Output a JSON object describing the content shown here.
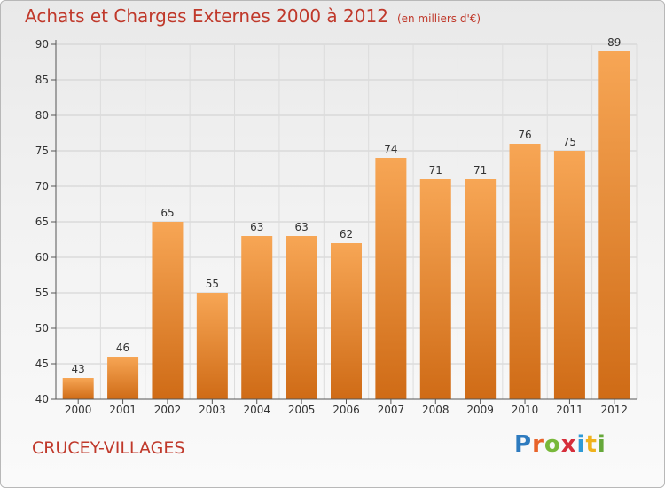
{
  "page": {
    "title": "Achats et Charges Externes 2000 à 2012",
    "unit_note": "(en milliers d'€)",
    "commune": "CRUCEY-VILLAGES"
  },
  "logo": {
    "letters": [
      "P",
      "r",
      "o",
      "x",
      "i",
      "t",
      "i"
    ],
    "colors": [
      "#2e7bbf",
      "#e8632a",
      "#78b83a",
      "#d62e3b",
      "#2e9ad6",
      "#f0b21c",
      "#66a83a"
    ],
    "text": "Proxiti"
  },
  "colors": {
    "bar_top": "#f7a655",
    "bar_bottom": "#cf6b16",
    "title": "#c0392b"
  },
  "chart_data": {
    "type": "bar",
    "categories": [
      "2000",
      "2001",
      "2002",
      "2003",
      "2004",
      "2005",
      "2006",
      "2007",
      "2008",
      "2009",
      "2010",
      "2011",
      "2012"
    ],
    "values": [
      43,
      46,
      65,
      55,
      63,
      63,
      62,
      74,
      71,
      71,
      76,
      75,
      89
    ],
    "title": "Achats et Charges Externes 2000 à 2012",
    "ylim": [
      40,
      90
    ],
    "yticks": [
      40,
      45,
      50,
      55,
      60,
      65,
      70,
      75,
      80,
      85,
      90
    ],
    "grid": true,
    "data_labels": true
  }
}
